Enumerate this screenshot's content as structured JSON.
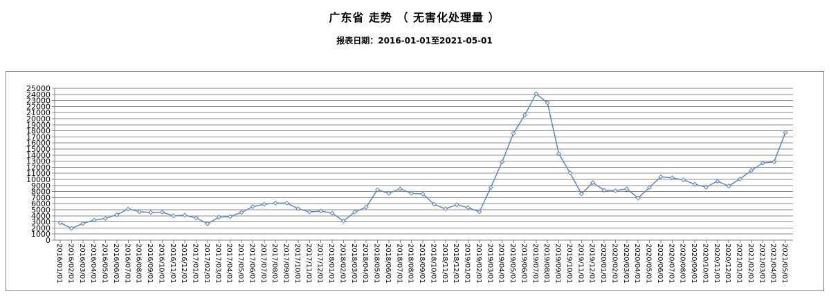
{
  "page": {
    "title": "广东省 走势 （ 无害化处理量 ）",
    "subtitle": "报表日期：2016-01-01至2021-05-01"
  },
  "chart_data": {
    "type": "line",
    "title": "广东省 走势 （ 无害化处理量 ）",
    "subtitle": "报表日期：2016-01-01至2021-05-01",
    "xlabel": "",
    "ylabel": "",
    "ylim": [
      0,
      25000
    ],
    "ytick_step": 1000,
    "grid": "horizontal",
    "legend": "none",
    "x": [
      "2016/01/01",
      "2016/02/01",
      "2016/03/01",
      "2016/04/01",
      "2016/05/01",
      "2016/06/01",
      "2016/07/01",
      "2016/08/01",
      "2016/09/01",
      "2016/10/01",
      "2016/11/01",
      "2016/12/01",
      "2017/01/01",
      "2017/02/01",
      "2017/03/01",
      "2017/04/01",
      "2017/05/01",
      "2017/06/01",
      "2017/07/01",
      "2017/08/01",
      "2017/09/01",
      "2017/10/01",
      "2017/11/01",
      "2017/12/01",
      "2018/01/01",
      "2018/02/01",
      "2018/03/01",
      "2018/04/01",
      "2018/05/01",
      "2018/06/01",
      "2018/07/01",
      "2018/08/01",
      "2018/09/01",
      "2018/10/01",
      "2018/11/01",
      "2018/12/01",
      "2019/01/01",
      "2019/02/01",
      "2019/03/01",
      "2019/04/01",
      "2019/05/01",
      "2019/06/01",
      "2019/07/01",
      "2019/08/01",
      "2019/09/01",
      "2019/10/01",
      "2019/11/01",
      "2019/12/01",
      "2020/01/01",
      "2020/02/01",
      "2020/03/01",
      "2020/04/01",
      "2020/05/01",
      "2020/06/01",
      "2020/07/01",
      "2020/08/01",
      "2020/09/01",
      "2020/10/01",
      "2020/11/01",
      "2020/12/01",
      "2021/01/01",
      "2021/02/01",
      "2021/03/01",
      "2021/04/01",
      "2021/05/01"
    ],
    "series": [
      {
        "name": "无害化处理量",
        "values": [
          2850,
          1940,
          2740,
          3300,
          3570,
          4180,
          5130,
          4680,
          4560,
          4600,
          3990,
          4100,
          3650,
          2700,
          3760,
          3880,
          4560,
          5510,
          5890,
          6100,
          6100,
          5170,
          4640,
          4790,
          4450,
          3150,
          4640,
          5420,
          8300,
          7700,
          8450,
          7700,
          7600,
          5900,
          5150,
          5830,
          5340,
          4660,
          8670,
          12900,
          17580,
          20600,
          24100,
          22600,
          14240,
          11060,
          7610,
          9470,
          8220,
          8140,
          8450,
          6930,
          8670,
          10420,
          10260,
          9920,
          9200,
          8720,
          9700,
          8900,
          10080,
          11480,
          12700,
          12900,
          17730
        ]
      }
    ],
    "colors": {
      "line": "#5b87c5",
      "marker_fill": "#eef3fa",
      "grid": "#8a8a8a",
      "axis": "#808080",
      "label": "#000000"
    }
  }
}
